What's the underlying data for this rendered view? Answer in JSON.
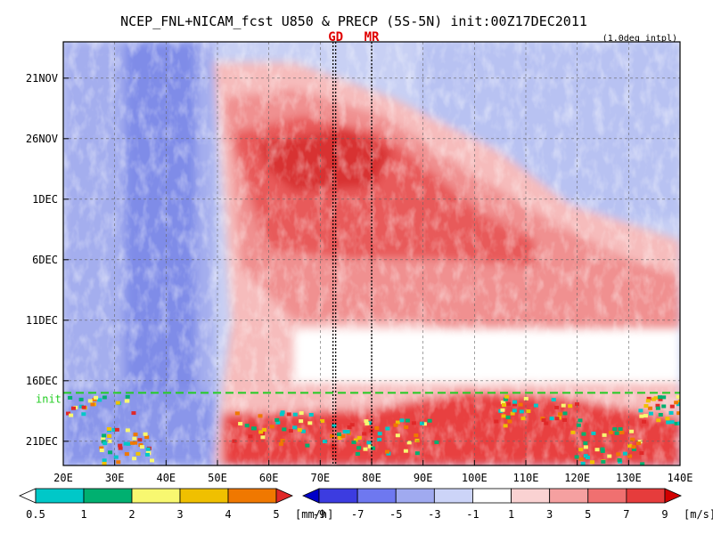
{
  "chart_data": {
    "type": "heatmap",
    "title": "NCEP_FNL+NICAM_fcst U850 & PRECP (5S-5N) init:00Z17DEC2011",
    "subtitle": "(1.0deg intpl)",
    "markers": [
      {
        "label": "GD",
        "lon": 73
      },
      {
        "label": "MR",
        "lon": 80
      }
    ],
    "init_label": "init",
    "init_day": 26,
    "x_ticks": [
      "20E",
      "30E",
      "40E",
      "50E",
      "60E",
      "70E",
      "80E",
      "90E",
      "100E",
      "110E",
      "120E",
      "130E",
      "140E"
    ],
    "x_range": [
      20,
      140
    ],
    "y_ticks": [
      {
        "label": "21NOV",
        "day": 0
      },
      {
        "label": "26NOV",
        "day": 5
      },
      {
        "label": "1DEC",
        "day": 10
      },
      {
        "label": "6DEC",
        "day": 15
      },
      {
        "label": "11DEC",
        "day": 20
      },
      {
        "label": "16DEC",
        "day": 25
      },
      {
        "label": "21DEC",
        "day": 30
      }
    ],
    "y_range_days": [
      -3,
      32
    ],
    "precip_legend": {
      "labels": [
        "0.5",
        "1",
        "2",
        "3",
        "4",
        "5"
      ],
      "unit": "[mm/h]",
      "colors": [
        "#ffffff",
        "#00c8c8",
        "#00b070",
        "#f8f870",
        "#f0c000",
        "#f07800",
        "#e02828"
      ]
    },
    "wind_legend": {
      "labels": [
        "-9",
        "-7",
        "-5",
        "-3",
        "-1",
        "1",
        "3",
        "5",
        "7",
        "9"
      ],
      "unit": "[m/s]",
      "colors": [
        "#0000c8",
        "#3c3ce0",
        "#6e78f0",
        "#a0aaf0",
        "#ccd4f8",
        "#ffffff",
        "#fad2d2",
        "#f5a0a0",
        "#f07070",
        "#e63c3c",
        "#d20000"
      ]
    }
  }
}
